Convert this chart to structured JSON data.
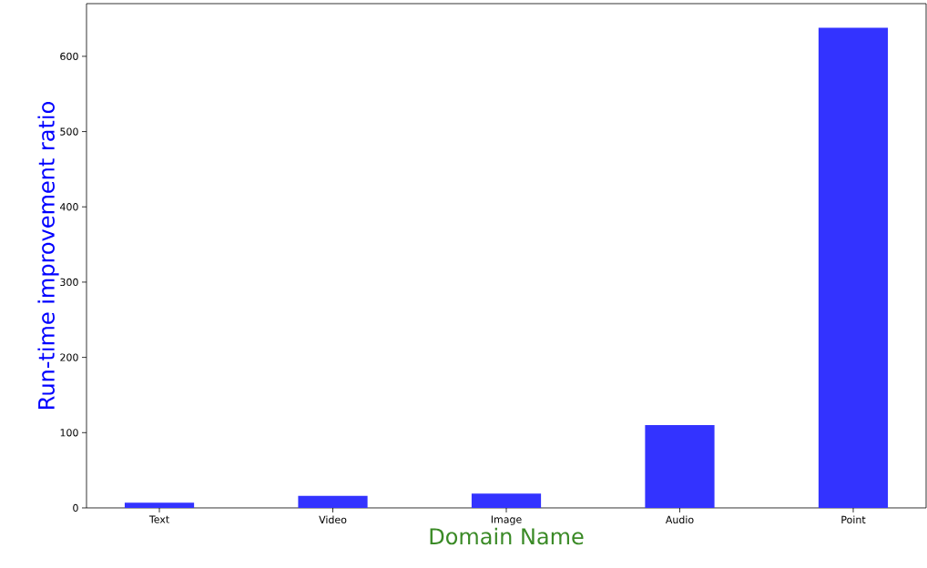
{
  "chart_data": {
    "type": "bar",
    "xlabel": "Domain Name",
    "ylabel": "Run-time improvement ratio",
    "categories": [
      "Text",
      "Video",
      "Image",
      "Audio",
      "Point"
    ],
    "values": [
      7,
      16,
      19,
      110,
      638
    ],
    "color": "#3333ff",
    "ylim": [
      0,
      670
    ],
    "yticks": [
      0,
      100,
      200,
      300,
      400,
      500,
      600
    ],
    "grid": false
  }
}
